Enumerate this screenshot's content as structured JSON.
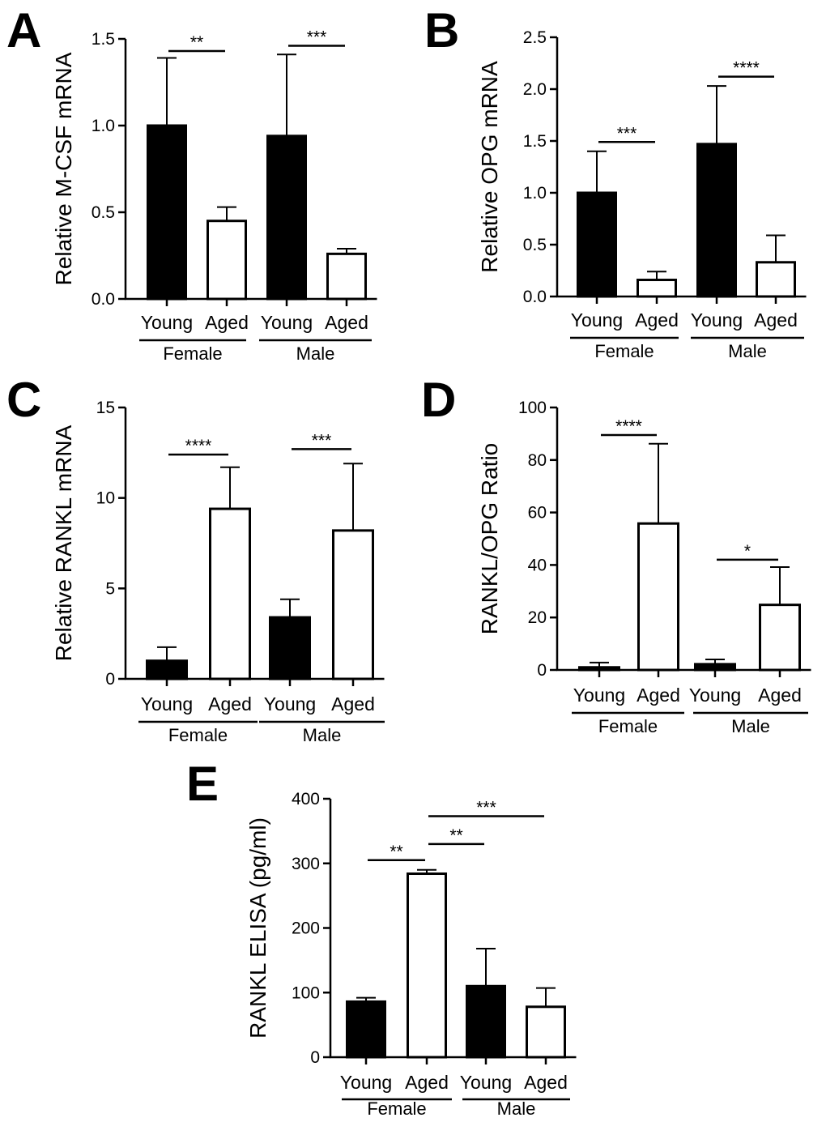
{
  "chart_data": [
    {
      "panel": "A",
      "type": "bar",
      "ylabel": "Relative M-CSF mRNA",
      "ylim": [
        0,
        1.5
      ],
      "yticks": [
        "0.0",
        "0.5",
        "1.0",
        "1.5"
      ],
      "categories": [
        "Young",
        "Aged",
        "Young",
        "Aged"
      ],
      "groups": [
        "Female",
        "Male"
      ],
      "values": [
        1.0,
        0.45,
        0.94,
        0.26
      ],
      "errors": [
        0.39,
        0.08,
        0.47,
        0.03
      ],
      "fills": [
        "#000000",
        "#ffffff",
        "#000000",
        "#ffffff"
      ],
      "significance": [
        {
          "from": 0,
          "to": 1,
          "label": "**",
          "y": 1.43
        },
        {
          "from": 2,
          "to": 3,
          "label": "***",
          "y": 1.46
        }
      ]
    },
    {
      "panel": "B",
      "type": "bar",
      "ylabel": "Relative OPG mRNA",
      "ylim": [
        0,
        2.5
      ],
      "yticks": [
        "0.0",
        "0.5",
        "1.0",
        "1.5",
        "2.0",
        "2.5"
      ],
      "categories": [
        "Young",
        "Aged",
        "Young",
        "Aged"
      ],
      "groups": [
        "Female",
        "Male"
      ],
      "values": [
        1.0,
        0.16,
        1.47,
        0.33
      ],
      "errors": [
        0.4,
        0.08,
        0.56,
        0.26
      ],
      "fills": [
        "#000000",
        "#ffffff",
        "#000000",
        "#ffffff"
      ],
      "significance": [
        {
          "from": 0,
          "to": 1,
          "label": "***",
          "y": 1.49
        },
        {
          "from": 2,
          "to": 3,
          "label": "****",
          "y": 2.12
        }
      ]
    },
    {
      "panel": "C",
      "type": "bar",
      "ylabel": "Relative RANKL mRNA",
      "ylim": [
        0,
        15
      ],
      "yticks": [
        "0",
        "5",
        "10",
        "15"
      ],
      "categories": [
        "Young",
        "Aged",
        "Young",
        "Aged"
      ],
      "groups": [
        "Female",
        "Male"
      ],
      "values": [
        1.0,
        9.4,
        3.4,
        8.2
      ],
      "errors": [
        0.75,
        2.3,
        1.0,
        3.7
      ],
      "fills": [
        "#000000",
        "#ffffff",
        "#000000",
        "#ffffff"
      ],
      "significance": [
        {
          "from": 0,
          "to": 1,
          "label": "****",
          "y": 12.4
        },
        {
          "from": 2,
          "to": 3,
          "label": "***",
          "y": 12.7
        }
      ]
    },
    {
      "panel": "D",
      "type": "bar",
      "ylabel": "RANKL/OPG Ratio",
      "ylim": [
        0,
        100
      ],
      "yticks": [
        "0",
        "20",
        "40",
        "60",
        "80",
        "100"
      ],
      "categories": [
        "Young",
        "Aged",
        "Young",
        "Aged"
      ],
      "groups": [
        "Female",
        "Male"
      ],
      "values": [
        1.0,
        55.8,
        2.2,
        24.8
      ],
      "errors": [
        1.8,
        30.4,
        1.8,
        14.4
      ],
      "fills": [
        "#000000",
        "#ffffff",
        "#000000",
        "#ffffff"
      ],
      "significance": [
        {
          "from": 0,
          "to": 1,
          "label": "****",
          "y": 89.5
        },
        {
          "from": 2,
          "to": 3,
          "label": "*",
          "y": 42
        }
      ]
    },
    {
      "panel": "E",
      "type": "bar",
      "ylabel": "RANKL ELISA (pg/ml)",
      "ylim": [
        0,
        400
      ],
      "yticks": [
        "0",
        "100",
        "200",
        "300",
        "400"
      ],
      "categories": [
        "Young",
        "Aged",
        "Young",
        "Aged"
      ],
      "groups": [
        "Female",
        "Male"
      ],
      "values": [
        86,
        284,
        110,
        78
      ],
      "errors": [
        6,
        6,
        58,
        29
      ],
      "fills": [
        "#000000",
        "#ffffff",
        "#000000",
        "#ffffff"
      ],
      "significance": [
        {
          "from": 0,
          "to": 1,
          "label": "**",
          "y": 305
        },
        {
          "from": 1,
          "to": 2,
          "label": "**",
          "y": 330
        },
        {
          "from": 1,
          "to": 3,
          "label": "***",
          "y": 373
        }
      ]
    }
  ]
}
